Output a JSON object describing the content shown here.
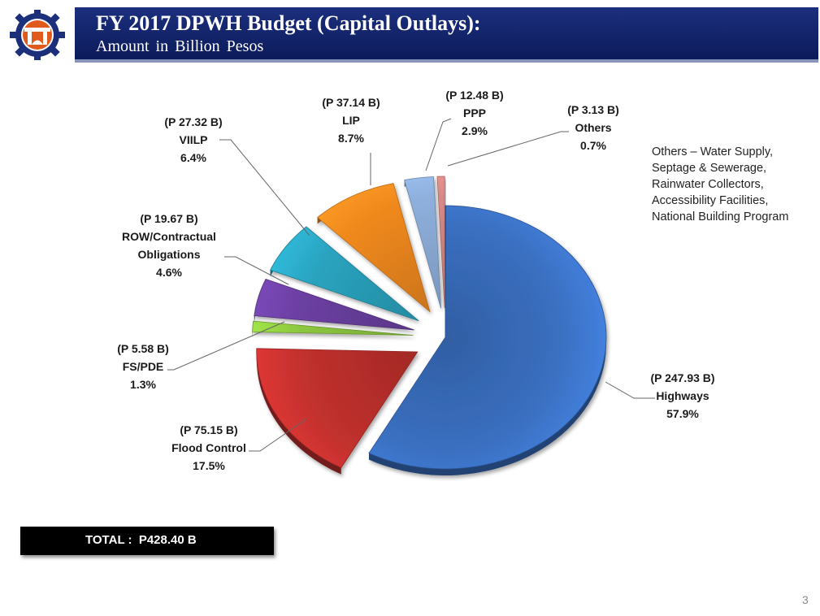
{
  "header": {
    "title": "FY 2017 DPWH Budget (Capital Outlays):",
    "subtitle": "Amount in Billion Pesos"
  },
  "logo": {
    "icon": "dpwh-gear-seal",
    "colors": {
      "gear": "#1b2f7a",
      "inner": "#e05a1e"
    }
  },
  "note": "Others – Water Supply, Septage & Sewerage, Rainwater Collectors, Accessibility Facilities, National Building Program",
  "total": "TOTAL :  P428.40 B",
  "page_number": "3",
  "chart_data": {
    "type": "pie",
    "style": "3d-exploded",
    "slices": [
      {
        "name": "Highways",
        "amount": "(P 247.93 B)",
        "value": 247.93,
        "percent": "57.9%",
        "color": "#3a6fc0"
      },
      {
        "name": "Flood Control",
        "amount": "(P 75.15 B)",
        "value": 75.15,
        "percent": "17.5%",
        "color": "#c0302d"
      },
      {
        "name": "FS/PDE",
        "amount": "(P 5.58 B)",
        "value": 5.58,
        "percent": "1.3%",
        "color": "#8cc63f"
      },
      {
        "name": "ROW/Contractual Obligations",
        "label_lines": [
          "ROW/Contractual",
          "Obligations"
        ],
        "amount": "(P 19.67 B)",
        "value": 19.67,
        "percent": "4.6%",
        "color": "#6a3fa0"
      },
      {
        "name": "VIILP",
        "amount": "(P 27.32 B)",
        "value": 27.32,
        "percent": "6.4%",
        "color": "#2aa3bf"
      },
      {
        "name": "LIP",
        "amount": "(P 37.14 B)",
        "value": 37.14,
        "percent": "8.7%",
        "color": "#f0891e"
      },
      {
        "name": "PPP",
        "amount": "(P 12.48 B)",
        "value": 12.48,
        "percent": "2.9%",
        "color": "#8fb0dd"
      },
      {
        "name": "Others",
        "amount": "(P 3.13 B)",
        "value": 3.13,
        "percent": "0.7%",
        "color": "#d98a88"
      }
    ]
  }
}
